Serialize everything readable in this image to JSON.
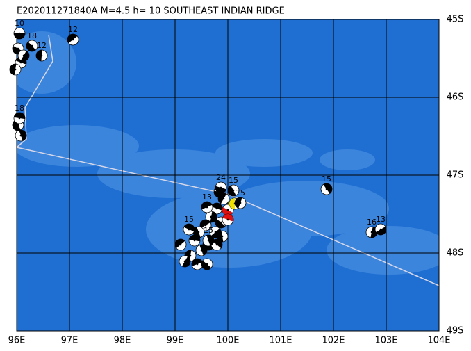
{
  "header": {
    "title": "E202011271840A M=4.5 h= 10 SOUTHEAST INDIAN RIDGE"
  },
  "lon_labels": [
    "96E",
    "97E",
    "98E",
    "99E",
    "100E",
    "101E",
    "102E",
    "103E",
    "104E"
  ],
  "lat_labels": [
    "45S",
    "46S",
    "47S",
    "48S",
    "49S"
  ],
  "event_labels": [
    "10",
    "18",
    "12",
    "12",
    "18",
    "15",
    "16",
    "13",
    "24",
    "15",
    "15",
    "13",
    "15",
    "15"
  ]
}
